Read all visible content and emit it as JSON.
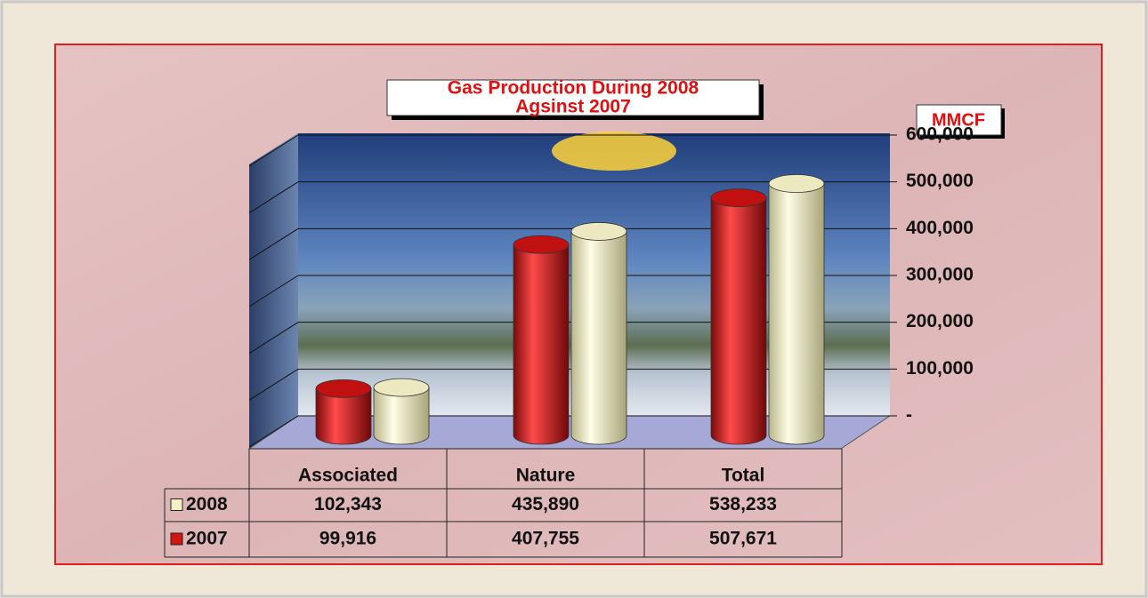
{
  "chart_data": {
    "type": "bar",
    "title": [
      "Gas Production During 2008",
      "Agsinst 2007"
    ],
    "unit_label": "MMCF",
    "categories": [
      "Associated",
      "Nature",
      "Total"
    ],
    "series": [
      {
        "name": "2008",
        "color": "#f5f2c8",
        "values": [
          102343,
          435890,
          538233
        ],
        "value_labels": [
          "102,343",
          "435,890",
          "538,233"
        ]
      },
      {
        "name": "2007",
        "color": "#d41414",
        "values": [
          99916,
          407755,
          507671
        ],
        "value_labels": [
          "99,916",
          "407,755",
          "507,671"
        ]
      }
    ],
    "ylim": [
      0,
      600000
    ],
    "yticks": [
      {
        "value": 0,
        "label": "-"
      },
      {
        "value": 100000,
        "label": "100,000"
      },
      {
        "value": 200000,
        "label": "200,000"
      },
      {
        "value": 300000,
        "label": "300,000"
      },
      {
        "value": 400000,
        "label": "400,000"
      },
      {
        "value": 500000,
        "label": "500,000"
      },
      {
        "value": 600000,
        "label": "600,000"
      }
    ],
    "grid": true
  }
}
